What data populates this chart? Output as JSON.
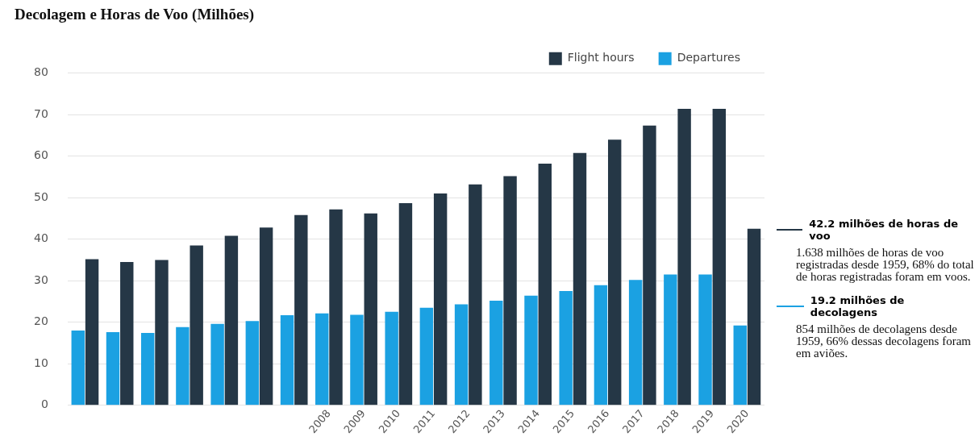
{
  "chart_data": {
    "type": "bar",
    "title": "Decolagem e Horas de Voo (Milhões)",
    "categories": [
      null,
      null,
      null,
      null,
      null,
      null,
      null,
      "2008",
      "2009",
      "2010",
      "2011",
      "2012",
      "2013",
      "2014",
      "2015",
      "2016",
      "2017",
      "2018",
      "2019",
      "2020"
    ],
    "series": [
      {
        "name": "Departures",
        "color": "#1ba1e2",
        "values": [
          18,
          17.6,
          17.4,
          18.8,
          19.6,
          20.3,
          21.7,
          22.1,
          21.8,
          22.5,
          23.5,
          24.3,
          25.2,
          26.4,
          27.5,
          28.9,
          30.2,
          31.5,
          31.5,
          19.2
        ]
      },
      {
        "name": "Flight hours",
        "color": "#253746",
        "values": [
          35.2,
          34.5,
          35,
          38.5,
          40.8,
          42.8,
          45.8,
          47.2,
          46.2,
          48.7,
          51,
          53.2,
          55.2,
          58.2,
          60.8,
          64,
          67.4,
          71.4,
          71.4,
          42.5
        ]
      }
    ],
    "ylim": [
      0,
      80
    ],
    "yticks": [
      0,
      10,
      20,
      30,
      40,
      50,
      60,
      70,
      80
    ],
    "grid": "y",
    "legend": "top right",
    "annotations": [
      "42.2 milhões de horas de voo",
      "1.638 milhões de horas de voo registradas desde 1959, 68% do total de horas registradas foram em voos.",
      "19.2 milhões de decolagens",
      "854 milhões de decolagens desde 1959, 66% dessas decolagens foram em aviões."
    ]
  }
}
